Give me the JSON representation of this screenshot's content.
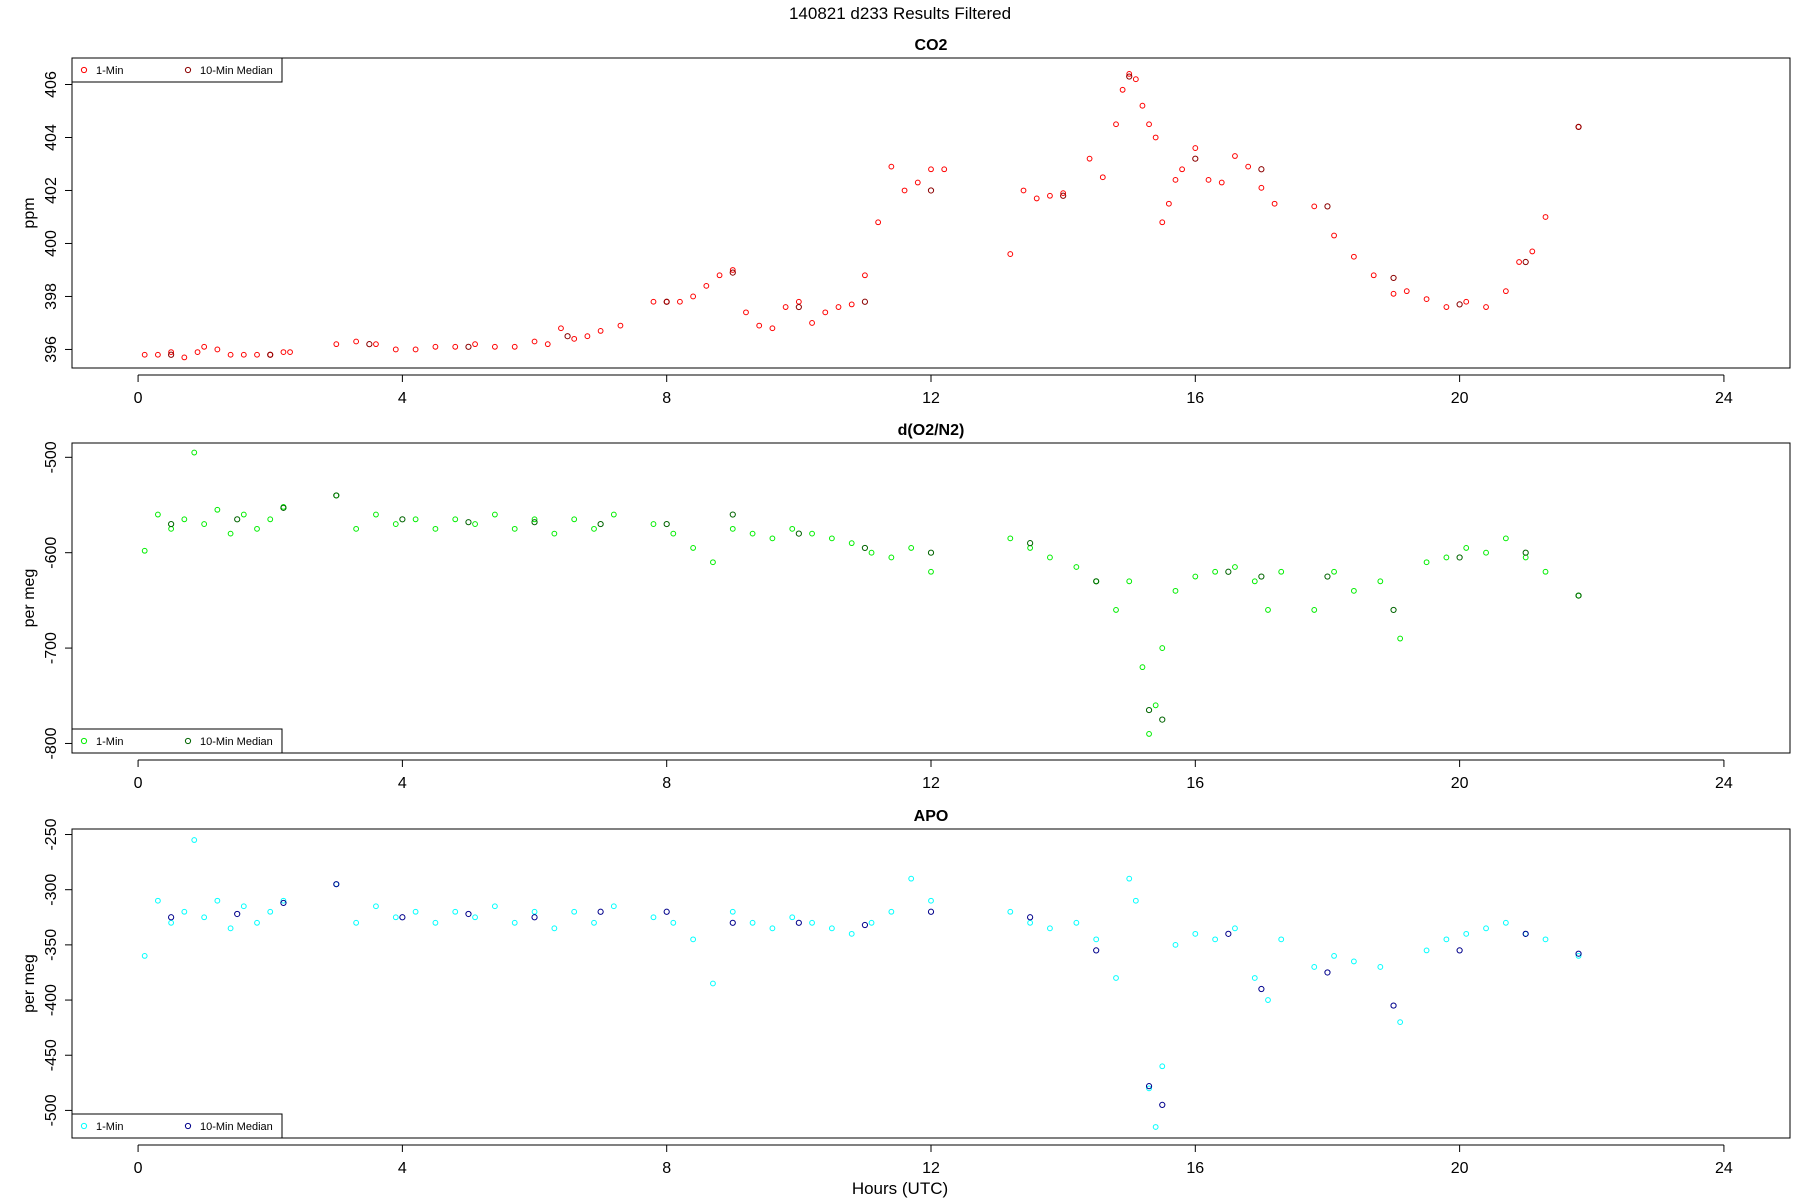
{
  "page_title": "140821   d233   Results Filtered",
  "xlabel": "Hours (UTC)",
  "x_ticks": [
    0,
    4,
    8,
    12,
    16,
    20,
    24
  ],
  "x_range": [
    -1,
    25
  ],
  "legend_placements": [
    "top-left",
    "bottom-left",
    "bottom-left"
  ],
  "chart_data": [
    {
      "type": "scatter",
      "title": "CO2",
      "ylabel": "ppm",
      "ylim": [
        395.3,
        407
      ],
      "y_ticks": [
        396,
        398,
        400,
        402,
        404,
        406
      ],
      "legend": [
        "1-Min",
        "10-Min Median"
      ],
      "series": [
        {
          "name": "1-Min",
          "color": "#ff0000",
          "marker": "open-circle",
          "x": [
            0.1,
            0.3,
            0.5,
            0.7,
            0.9,
            1.0,
            1.2,
            1.4,
            1.6,
            1.8,
            2.0,
            2.2,
            2.3,
            3.0,
            3.3,
            3.6,
            3.9,
            4.2,
            4.5,
            4.8,
            5.1,
            5.4,
            5.7,
            6.0,
            6.2,
            6.4,
            6.6,
            6.8,
            7.0,
            7.3,
            7.8,
            8.0,
            8.2,
            8.4,
            8.6,
            8.8,
            9.0,
            9.2,
            9.4,
            9.6,
            9.8,
            10.0,
            10.2,
            10.4,
            10.6,
            10.8,
            11.0,
            11.2,
            11.4,
            11.6,
            11.8,
            12.0,
            12.2,
            13.2,
            13.4,
            13.6,
            13.8,
            14.0,
            14.4,
            14.6,
            14.8,
            14.9,
            15.0,
            15.1,
            15.2,
            15.3,
            15.4,
            15.5,
            15.6,
            15.7,
            15.8,
            16.0,
            16.2,
            16.4,
            16.6,
            16.8,
            17.0,
            17.2,
            17.8,
            18.1,
            18.4,
            18.7,
            19.0,
            19.2,
            19.5,
            19.8,
            20.1,
            20.4,
            20.7,
            20.9,
            21.1,
            21.3,
            21.8
          ],
          "y": [
            395.8,
            395.8,
            395.9,
            395.7,
            395.9,
            396.1,
            396.0,
            395.8,
            395.8,
            395.8,
            395.8,
            395.9,
            395.9,
            396.2,
            396.3,
            396.2,
            396.0,
            396.0,
            396.1,
            396.1,
            396.2,
            396.1,
            396.1,
            396.3,
            396.2,
            396.8,
            396.4,
            396.5,
            396.7,
            396.9,
            397.8,
            397.8,
            397.8,
            398.0,
            398.4,
            398.8,
            399.0,
            397.4,
            396.9,
            396.8,
            397.6,
            397.8,
            397.0,
            397.4,
            397.6,
            397.7,
            398.8,
            400.8,
            402.9,
            402.0,
            402.3,
            402.8,
            402.8,
            399.6,
            402.0,
            401.7,
            401.8,
            401.9,
            403.2,
            402.5,
            404.5,
            405.8,
            406.4,
            406.2,
            405.2,
            404.5,
            404.0,
            400.8,
            401.5,
            402.4,
            402.8,
            403.6,
            402.4,
            402.3,
            403.3,
            402.9,
            402.1,
            401.5,
            401.4,
            400.3,
            399.5,
            398.8,
            398.1,
            398.2,
            397.9,
            397.6,
            397.8,
            397.6,
            398.2,
            399.3,
            399.7,
            401.0,
            404.4
          ]
        },
        {
          "name": "10-Min Median",
          "color": "#8b0000",
          "marker": "open-circle",
          "x": [
            0.5,
            2.0,
            3.5,
            5.0,
            6.5,
            8.0,
            9.0,
            10.0,
            11.0,
            12.0,
            14.0,
            15.0,
            16.0,
            17.0,
            18.0,
            19.0,
            20.0,
            21.0,
            21.8
          ],
          "y": [
            395.8,
            395.8,
            396.2,
            396.1,
            396.5,
            397.8,
            398.9,
            397.6,
            397.8,
            402.0,
            401.8,
            406.3,
            403.2,
            402.8,
            401.4,
            398.7,
            397.7,
            399.3,
            404.4
          ]
        }
      ]
    },
    {
      "type": "scatter",
      "title": "d(O2/N2)",
      "ylabel": "per meg",
      "ylim": [
        -810,
        -485
      ],
      "y_ticks": [
        -500,
        -600,
        -700,
        -800
      ],
      "legend": [
        "1-Min",
        "10-Min Median"
      ],
      "series": [
        {
          "name": "1-Min",
          "color": "#00ee00",
          "marker": "open-circle",
          "x": [
            0.1,
            0.3,
            0.5,
            0.7,
            0.85,
            1.0,
            1.2,
            1.4,
            1.6,
            1.8,
            2.0,
            2.2,
            3.0,
            3.3,
            3.6,
            3.9,
            4.2,
            4.5,
            4.8,
            5.1,
            5.4,
            5.7,
            6.0,
            6.3,
            6.6,
            6.9,
            7.2,
            7.8,
            8.1,
            8.4,
            8.7,
            9.0,
            9.3,
            9.6,
            9.9,
            10.2,
            10.5,
            10.8,
            11.1,
            11.4,
            11.7,
            12.0,
            13.2,
            13.5,
            13.8,
            14.2,
            14.5,
            14.8,
            15.0,
            15.2,
            15.3,
            15.4,
            15.5,
            15.7,
            16.0,
            16.3,
            16.6,
            16.9,
            17.1,
            17.3,
            17.8,
            18.1,
            18.4,
            18.8,
            19.1,
            19.5,
            19.8,
            20.1,
            20.4,
            20.7,
            21.0,
            21.3,
            21.8
          ],
          "y": [
            -598,
            -560,
            -575,
            -565,
            -495,
            -570,
            -555,
            -580,
            -560,
            -575,
            -565,
            -552,
            -540,
            -575,
            -560,
            -570,
            -565,
            -575,
            -565,
            -570,
            -560,
            -575,
            -565,
            -580,
            -565,
            -575,
            -560,
            -570,
            -580,
            -595,
            -610,
            -575,
            -580,
            -585,
            -575,
            -580,
            -585,
            -590,
            -600,
            -605,
            -595,
            -620,
            -585,
            -595,
            -605,
            -615,
            -630,
            -660,
            -630,
            -720,
            -790,
            -760,
            -700,
            -640,
            -625,
            -620,
            -615,
            -630,
            -660,
            -620,
            -660,
            -620,
            -640,
            -630,
            -690,
            -610,
            -605,
            -595,
            -600,
            -585,
            -605,
            -620,
            -645
          ]
        },
        {
          "name": "10-Min Median",
          "color": "#006400",
          "marker": "open-circle",
          "x": [
            0.5,
            1.5,
            2.2,
            3.0,
            4.0,
            5.0,
            6.0,
            7.0,
            8.0,
            9.0,
            10.0,
            11.0,
            12.0,
            13.5,
            14.5,
            15.3,
            15.5,
            16.5,
            17.0,
            18.0,
            19.0,
            20.0,
            21.0,
            21.8
          ],
          "y": [
            -570,
            -565,
            -553,
            -540,
            -565,
            -568,
            -568,
            -570,
            -570,
            -560,
            -580,
            -595,
            -600,
            -590,
            -630,
            -765,
            -775,
            -620,
            -625,
            -625,
            -660,
            -605,
            -600,
            -645
          ]
        }
      ]
    },
    {
      "type": "scatter",
      "title": "APO",
      "ylabel": "per meg",
      "ylim": [
        -525,
        -245
      ],
      "y_ticks": [
        -250,
        -300,
        -350,
        -400,
        -450,
        -500
      ],
      "legend": [
        "1-Min",
        "10-Min Median"
      ],
      "series": [
        {
          "name": "1-Min",
          "color": "#00ffff",
          "marker": "open-circle",
          "x": [
            0.1,
            0.3,
            0.5,
            0.7,
            0.85,
            1.0,
            1.2,
            1.4,
            1.6,
            1.8,
            2.0,
            2.2,
            3.0,
            3.3,
            3.6,
            3.9,
            4.2,
            4.5,
            4.8,
            5.1,
            5.4,
            5.7,
            6.0,
            6.3,
            6.6,
            6.9,
            7.2,
            7.8,
            8.1,
            8.4,
            8.7,
            9.0,
            9.3,
            9.6,
            9.9,
            10.2,
            10.5,
            10.8,
            11.1,
            11.4,
            11.7,
            12.0,
            13.2,
            13.5,
            13.8,
            14.2,
            14.5,
            14.8,
            15.0,
            15.1,
            15.3,
            15.4,
            15.5,
            15.7,
            16.0,
            16.3,
            16.6,
            16.9,
            17.1,
            17.3,
            17.8,
            18.1,
            18.4,
            18.8,
            19.1,
            19.5,
            19.8,
            20.1,
            20.4,
            20.7,
            21.0,
            21.3,
            21.8
          ],
          "y": [
            -360,
            -310,
            -330,
            -320,
            -255,
            -325,
            -310,
            -335,
            -315,
            -330,
            -320,
            -310,
            -295,
            -330,
            -315,
            -325,
            -320,
            -330,
            -320,
            -325,
            -315,
            -330,
            -320,
            -335,
            -320,
            -330,
            -315,
            -325,
            -330,
            -345,
            -385,
            -320,
            -330,
            -335,
            -325,
            -330,
            -335,
            -340,
            -330,
            -320,
            -290,
            -310,
            -320,
            -330,
            -335,
            -330,
            -345,
            -380,
            -290,
            -310,
            -480,
            -515,
            -460,
            -350,
            -340,
            -345,
            -335,
            -380,
            -400,
            -345,
            -370,
            -360,
            -365,
            -370,
            -420,
            -355,
            -345,
            -340,
            -335,
            -330,
            -340,
            -345,
            -360
          ]
        },
        {
          "name": "10-Min Median",
          "color": "#00008b",
          "marker": "open-circle",
          "x": [
            0.5,
            1.5,
            2.2,
            3.0,
            4.0,
            5.0,
            6.0,
            7.0,
            8.0,
            9.0,
            10.0,
            11.0,
            12.0,
            13.5,
            14.5,
            15.3,
            15.5,
            16.5,
            17.0,
            18.0,
            19.0,
            20.0,
            21.0,
            21.8
          ],
          "y": [
            -325,
            -322,
            -312,
            -295,
            -325,
            -322,
            -325,
            -320,
            -320,
            -330,
            -330,
            -332,
            -320,
            -325,
            -355,
            -478,
            -495,
            -340,
            -390,
            -375,
            -405,
            -355,
            -340,
            -358
          ]
        }
      ]
    }
  ]
}
